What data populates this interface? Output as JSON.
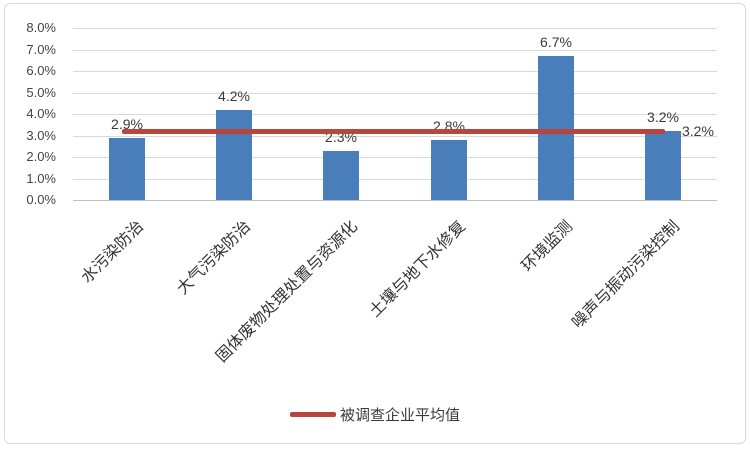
{
  "chart_data": {
    "type": "bar",
    "title": "",
    "categories": [
      "水污染防治",
      "大气污染防治",
      "固体废物处理处置与资源化",
      "土壤与地下水修复",
      "环境监测",
      "噪声与振动污染控制"
    ],
    "values": [
      2.9,
      4.2,
      2.3,
      2.8,
      6.7,
      3.2
    ],
    "value_labels": [
      "2.9%",
      "4.2%",
      "2.3%",
      "2.8%",
      "6.7%",
      "3.2%"
    ],
    "y_ticks": [
      {
        "value": 0,
        "label": "0.0%"
      },
      {
        "value": 1,
        "label": "1.0%"
      },
      {
        "value": 2,
        "label": "2.0%"
      },
      {
        "value": 3,
        "label": "3.0%"
      },
      {
        "value": 4,
        "label": "4.0%"
      },
      {
        "value": 5,
        "label": "5.0%"
      },
      {
        "value": 6,
        "label": "6.0%"
      },
      {
        "value": 7,
        "label": "7.0%"
      },
      {
        "value": 8,
        "label": "8.0%"
      }
    ],
    "ylim": [
      0,
      8
    ],
    "grid": "horizontal",
    "average_line": {
      "value": 3.2,
      "label": "3.2%",
      "legend_label": "被调查企业平均值",
      "color": "#b8463f"
    },
    "bar_color": "#4a7ebb",
    "gridline_color": "#d9d9d9",
    "legend_position": "bottom"
  }
}
